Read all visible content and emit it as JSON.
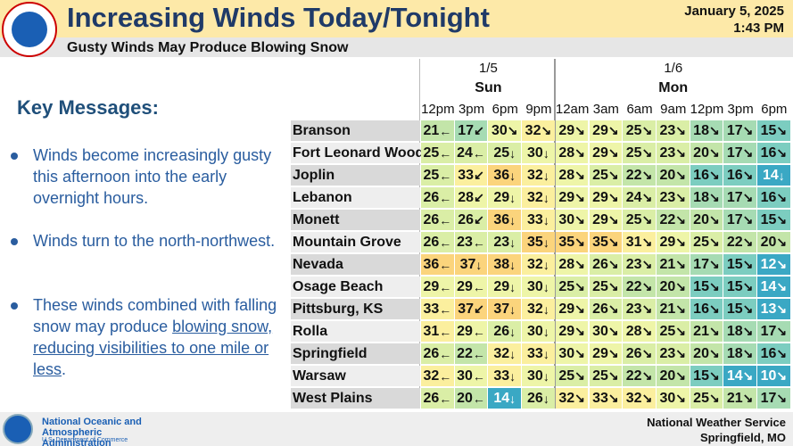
{
  "header": {
    "title": "Increasing Winds Today/Tonight",
    "date": "January 5, 2025",
    "time": "1:43 PM",
    "subtitle": "Gusty Winds May Produce Blowing Snow",
    "logo_text": "NATIONAL WEATHER SERVICE"
  },
  "key_messages": {
    "heading": "Key Messages:",
    "bullets": [
      {
        "text": "Winds become increasingly gusty this afternoon into the early overnight hours."
      },
      {
        "text": "Winds turn to the north-northwest."
      },
      {
        "text": "These winds combined with falling snow may produce ",
        "underlined": "blowing snow, reducing visibilities to one mile or less",
        "end": "."
      }
    ]
  },
  "table": {
    "days": [
      {
        "date": "1/5",
        "day": "Sun",
        "hours": [
          "12pm",
          "3pm",
          "6pm",
          "9pm"
        ]
      },
      {
        "date": "1/6",
        "day": "Mon",
        "hours": [
          "12am",
          "3am",
          "6am",
          "9am",
          "12pm",
          "3pm",
          "6pm"
        ]
      }
    ],
    "rows": [
      {
        "name": "Branson",
        "values": [
          21,
          17,
          30,
          32,
          29,
          29,
          25,
          23,
          18,
          17,
          15
        ],
        "arrows": [
          "←",
          "↙",
          "↘",
          "↘",
          "↘",
          "↘",
          "↘",
          "↘",
          "↘",
          "↘",
          "↘"
        ]
      },
      {
        "name": "Fort Leonard Wood",
        "values": [
          25,
          24,
          25,
          30,
          28,
          29,
          25,
          23,
          20,
          17,
          16
        ],
        "arrows": [
          "←",
          "←",
          "↓",
          "↓",
          "↘",
          "↘",
          "↘",
          "↘",
          "↘",
          "↘",
          "↘"
        ]
      },
      {
        "name": "Joplin",
        "values": [
          25,
          33,
          36,
          32,
          28,
          25,
          22,
          20,
          16,
          16,
          14
        ],
        "arrows": [
          "←",
          "↙",
          "↓",
          "↓",
          "↘",
          "↘",
          "↘",
          "↘",
          "↘",
          "↘",
          "↓"
        ]
      },
      {
        "name": "Lebanon",
        "values": [
          26,
          28,
          29,
          32,
          29,
          29,
          24,
          23,
          18,
          17,
          16
        ],
        "arrows": [
          "←",
          "↙",
          "↓",
          "↓",
          "↘",
          "↘",
          "↘",
          "↘",
          "↘",
          "↘",
          "↘"
        ]
      },
      {
        "name": "Monett",
        "values": [
          26,
          26,
          36,
          33,
          30,
          29,
          25,
          22,
          20,
          17,
          15
        ],
        "arrows": [
          "←",
          "↙",
          "↓",
          "↓",
          "↘",
          "↘",
          "↘",
          "↘",
          "↘",
          "↘",
          "↘"
        ]
      },
      {
        "name": "Mountain Grove",
        "values": [
          26,
          23,
          23,
          35,
          35,
          35,
          31,
          29,
          25,
          22,
          20
        ],
        "arrows": [
          "←",
          "←",
          "↓",
          "↓",
          "↘",
          "↘",
          "↘",
          "↘",
          "↘",
          "↘",
          "↘"
        ]
      },
      {
        "name": "Nevada",
        "values": [
          36,
          37,
          38,
          32,
          28,
          26,
          23,
          21,
          17,
          15,
          12
        ],
        "arrows": [
          "←",
          "↓",
          "↓",
          "↓",
          "↘",
          "↘",
          "↘",
          "↘",
          "↘",
          "↘",
          "↘"
        ]
      },
      {
        "name": "Osage Beach",
        "values": [
          29,
          29,
          29,
          30,
          25,
          25,
          22,
          20,
          15,
          15,
          14
        ],
        "arrows": [
          "←",
          "←",
          "↓",
          "↓",
          "↘",
          "↘",
          "↘",
          "↘",
          "↘",
          "↘",
          "↘"
        ]
      },
      {
        "name": "Pittsburg, KS",
        "values": [
          33,
          37,
          37,
          32,
          29,
          26,
          23,
          21,
          16,
          15,
          13
        ],
        "arrows": [
          "←",
          "↙",
          "↓",
          "↓",
          "↘",
          "↘",
          "↘",
          "↘",
          "↘",
          "↘",
          "↘"
        ]
      },
      {
        "name": "Rolla",
        "values": [
          31,
          29,
          26,
          30,
          29,
          30,
          28,
          25,
          21,
          18,
          17
        ],
        "arrows": [
          "←",
          "←",
          "↓",
          "↓",
          "↘",
          "↘",
          "↘",
          "↘",
          "↘",
          "↘",
          "↘"
        ]
      },
      {
        "name": "Springfield",
        "values": [
          26,
          22,
          32,
          33,
          30,
          29,
          26,
          23,
          20,
          18,
          16
        ],
        "arrows": [
          "←",
          "←",
          "↓",
          "↓",
          "↘",
          "↘",
          "↘",
          "↘",
          "↘",
          "↘",
          "↘"
        ]
      },
      {
        "name": "Warsaw",
        "values": [
          32,
          30,
          33,
          30,
          25,
          25,
          22,
          20,
          15,
          14,
          10
        ],
        "arrows": [
          "←",
          "←",
          "↓",
          "↓",
          "↘",
          "↘",
          "↘",
          "↘",
          "↘",
          "↘",
          "↘"
        ]
      },
      {
        "name": "West Plains",
        "values": [
          26,
          20,
          14,
          26,
          32,
          33,
          32,
          30,
          25,
          21,
          17
        ],
        "arrows": [
          "←",
          "←",
          "↓",
          "↓",
          "↘",
          "↘",
          "↘",
          "↘",
          "↘",
          "↘",
          "↘"
        ]
      }
    ]
  },
  "footer": {
    "agency": "National Oceanic and Atmospheric Administration",
    "department": "U.S. Department of Commerce",
    "office": "National Weather Service",
    "location": "Springfield, MO"
  }
}
